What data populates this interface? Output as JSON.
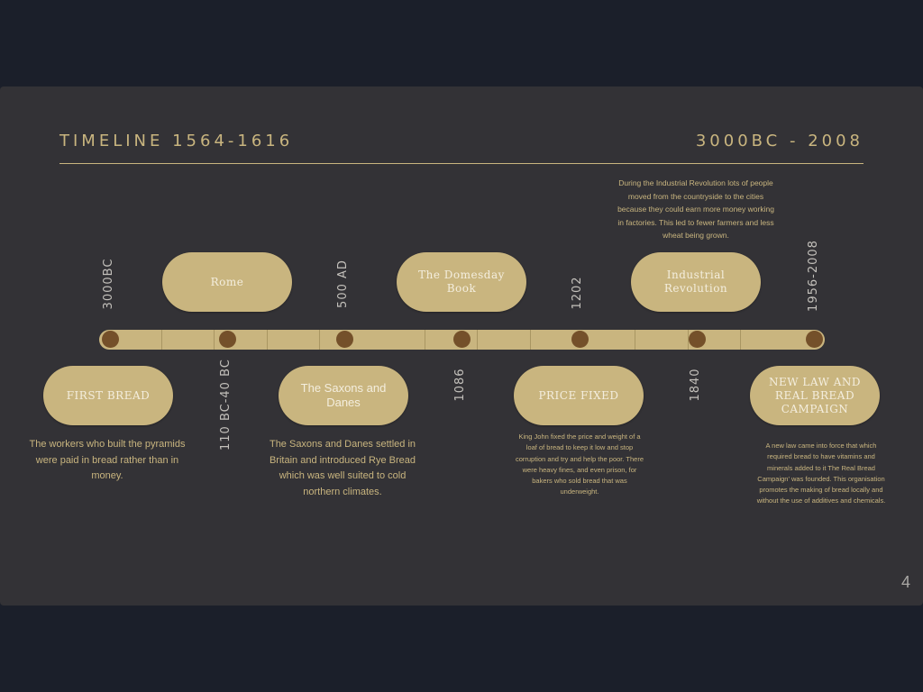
{
  "header": {
    "title": "TIMELINE 1564-1616",
    "range": "3000BC - 2008"
  },
  "timeline": {
    "above": [
      {
        "label": "Rome"
      },
      {
        "label": "The Domesday Book"
      },
      {
        "label": "Industrial Revolution"
      }
    ],
    "below": [
      {
        "label": "FIRST BREAD",
        "text": "The workers who built the pyramids were paid in bread rather than in money."
      },
      {
        "label": "The Saxons and Danes",
        "text": "The Saxons and Danes settled in Britain and introduced Rye Bread which was well suited to cold northern climates."
      },
      {
        "label": "PRICE FIXED",
        "text": "King John fixed the price and weight of a loaf of bread to keep it low and stop corruption and try and help the poor. There were heavy fines, and even prison, for bakers who sold bread that was underweight."
      },
      {
        "label": "NEW LAW AND REAL BREAD CAMPAIGN",
        "text": "A new law came into force that which required bread to have vitamins and minerals added to it The Real Bread Campaign' was founded. This organisation promotes the making of bread locally and without the use of additives and chemicals."
      }
    ],
    "dates": [
      "3000BC",
      "110 BC-40 BC",
      "500 AD",
      "1086",
      "1202",
      "1840",
      "1956-2008"
    ],
    "industrial_text": "During the Industrial Revolution lots of people moved from the countryside to the cities because they could earn more money working in factories. This led to fewer farmers and less wheat being grown."
  },
  "page_number": "4",
  "colors": {
    "background": "#1b1f2a",
    "slide": "#333236",
    "accent": "#c9b57f",
    "dot": "#74502a"
  }
}
